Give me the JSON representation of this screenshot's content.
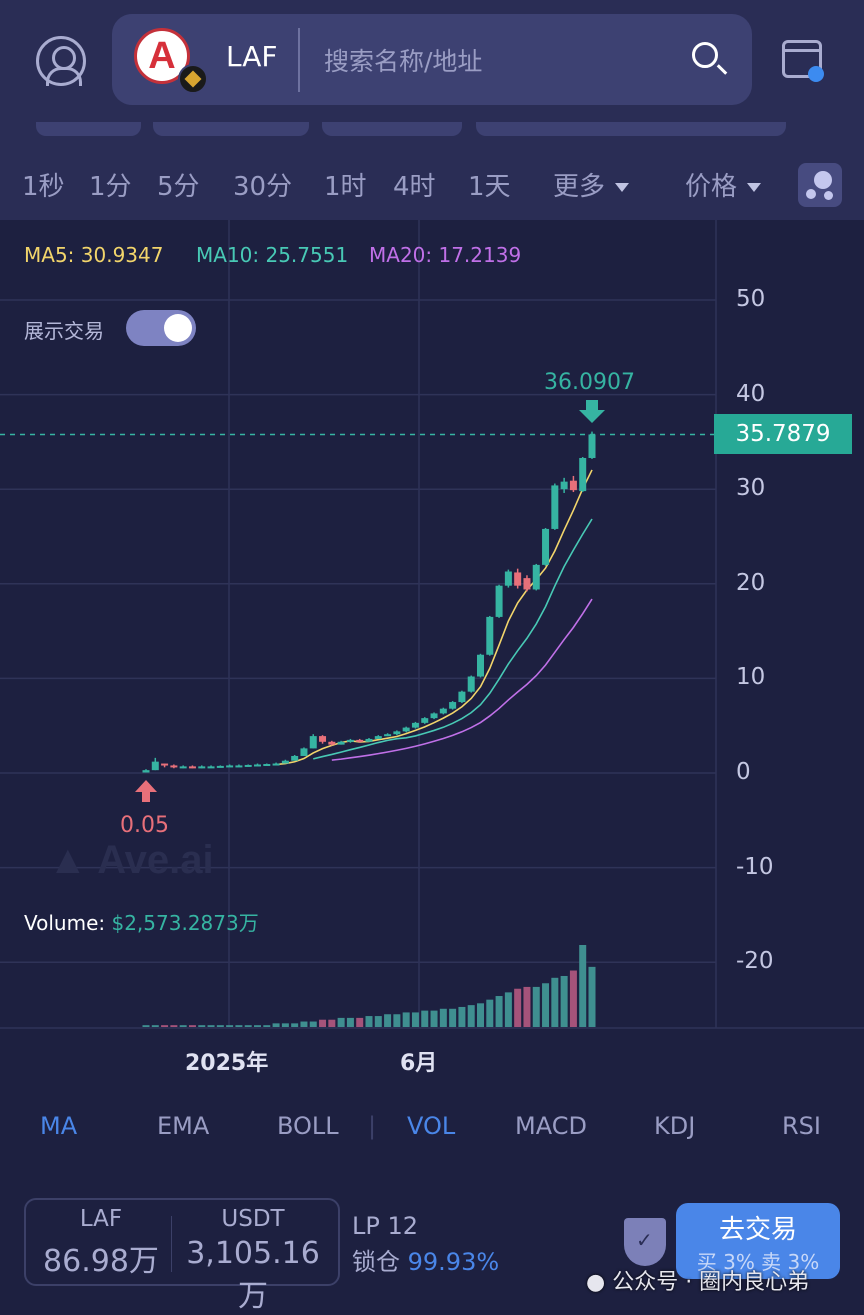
{
  "header": {
    "token_symbol": "LAF",
    "search_placeholder": "搜索名称/地址"
  },
  "timeframes": [
    "1秒",
    "1分",
    "5分",
    "30分",
    "1时",
    "4时",
    "1天"
  ],
  "more_label": "更多",
  "price_label": "价格",
  "ma_legend": {
    "ma5": "MA5: 30.9347",
    "ma10": "MA10: 25.7551",
    "ma20": "MA20: 17.2139"
  },
  "show_trades_label": "展示交易",
  "show_trades_on": true,
  "watermark": "Ave.ai",
  "volume_label": "Volume:",
  "volume_value": "$2,573.2873万",
  "colors": {
    "up": "#36b4a2",
    "down": "#e8707a",
    "ma5": "#f2d56b",
    "ma10": "#48c9b5",
    "ma20": "#c070e8",
    "accent": "#4a86e8"
  },
  "chart_data": {
    "type": "candlestick",
    "y_ticks": [
      "50",
      "40",
      "30",
      "20",
      "10",
      "0",
      "-10",
      "-20"
    ],
    "ylim": [
      -27,
      55
    ],
    "x_labels": [
      "2025年",
      "6月"
    ],
    "current_price": "35.7879",
    "high_label": "36.0907",
    "low_label": "0.05",
    "candles": [
      [
        0.05,
        0.3,
        0.4,
        0.05
      ],
      [
        0.3,
        1.2,
        1.6,
        0.3
      ],
      [
        1.0,
        0.8,
        1.0,
        0.6
      ],
      [
        0.8,
        0.6,
        0.9,
        0.5
      ],
      [
        0.6,
        0.7,
        0.8,
        0.5
      ],
      [
        0.7,
        0.6,
        0.8,
        0.5
      ],
      [
        0.6,
        0.7,
        0.8,
        0.5
      ],
      [
        0.7,
        0.7,
        0.8,
        0.6
      ],
      [
        0.7,
        0.75,
        0.8,
        0.6
      ],
      [
        0.75,
        0.8,
        0.9,
        0.7
      ],
      [
        0.8,
        0.8,
        0.9,
        0.7
      ],
      [
        0.8,
        0.85,
        0.9,
        0.7
      ],
      [
        0.85,
        0.9,
        1.0,
        0.8
      ],
      [
        0.9,
        0.95,
        1.0,
        0.8
      ],
      [
        0.95,
        1.0,
        1.1,
        0.9
      ],
      [
        1.0,
        1.3,
        1.4,
        1.0
      ],
      [
        1.3,
        1.8,
        1.9,
        1.3
      ],
      [
        1.8,
        2.6,
        2.7,
        1.8
      ],
      [
        2.6,
        3.9,
        4.1,
        2.6
      ],
      [
        3.9,
        3.3,
        4.0,
        3.1
      ],
      [
        3.3,
        3.0,
        3.4,
        2.9
      ],
      [
        3.0,
        3.3,
        3.4,
        3.0
      ],
      [
        3.3,
        3.5,
        3.6,
        3.2
      ],
      [
        3.5,
        3.3,
        3.6,
        3.2
      ],
      [
        3.3,
        3.6,
        3.7,
        3.3
      ],
      [
        3.6,
        3.9,
        4.0,
        3.6
      ],
      [
        3.9,
        4.1,
        4.2,
        3.9
      ],
      [
        4.1,
        4.4,
        4.5,
        4.0
      ],
      [
        4.4,
        4.8,
        4.9,
        4.3
      ],
      [
        4.8,
        5.3,
        5.4,
        4.7
      ],
      [
        5.3,
        5.8,
        5.9,
        5.2
      ],
      [
        5.8,
        6.3,
        6.4,
        5.7
      ],
      [
        6.3,
        6.8,
        6.9,
        6.2
      ],
      [
        6.8,
        7.5,
        7.6,
        6.7
      ],
      [
        7.5,
        8.6,
        8.7,
        7.4
      ],
      [
        8.6,
        10.2,
        10.3,
        8.5
      ],
      [
        10.2,
        12.5,
        12.6,
        10.1
      ],
      [
        12.5,
        16.5,
        16.6,
        12.4
      ],
      [
        16.5,
        19.8,
        19.9,
        16.4
      ],
      [
        19.8,
        21.3,
        21.5,
        19.6
      ],
      [
        21.2,
        19.8,
        21.6,
        19.5
      ],
      [
        20.6,
        19.4,
        20.9,
        19.2
      ],
      [
        19.4,
        22.0,
        22.1,
        19.3
      ],
      [
        22.0,
        25.8,
        25.9,
        21.9
      ],
      [
        25.8,
        30.4,
        30.6,
        25.7
      ],
      [
        30.0,
        30.8,
        31.2,
        29.6
      ],
      [
        30.9,
        29.9,
        31.4,
        29.7
      ],
      [
        29.8,
        33.3,
        33.4,
        29.7
      ],
      [
        33.3,
        35.7879,
        36.0907,
        33.2
      ]
    ],
    "volume_relative": [
      1,
      1,
      1,
      1,
      1,
      1,
      1,
      1,
      1,
      1,
      1,
      1,
      1,
      1,
      2,
      2,
      2,
      3,
      3,
      4,
      4,
      5,
      5,
      5,
      6,
      6,
      7,
      7,
      8,
      8,
      9,
      9,
      10,
      10,
      11,
      12,
      13,
      15,
      17,
      19,
      21,
      22,
      22,
      24,
      27,
      28,
      31,
      45,
      33
    ],
    "volume_direction": [
      1,
      1,
      0,
      0,
      1,
      0,
      1,
      1,
      1,
      1,
      1,
      1,
      1,
      1,
      1,
      1,
      1,
      1,
      1,
      0,
      0,
      1,
      1,
      0,
      1,
      1,
      1,
      1,
      1,
      1,
      1,
      1,
      1,
      1,
      1,
      1,
      1,
      1,
      1,
      1,
      0,
      0,
      1,
      1,
      1,
      1,
      0,
      1,
      1
    ]
  },
  "indicators": [
    "MA",
    "EMA",
    "BOLL",
    "VOL",
    "MACD",
    "KDJ",
    "RSI"
  ],
  "indicators_active": [
    "MA",
    "VOL"
  ],
  "footer": {
    "base_symbol": "LAF",
    "base_amount": "86.98万",
    "quote_symbol": "USDT",
    "quote_amount": "3,105.16万",
    "lp": "LP 12",
    "lock_label": "锁仓",
    "lock_value": "99.93%",
    "trade_label": "去交易",
    "tax": "买 3% 卖 3%",
    "wechat": "公众号 · 圈内良心弟"
  }
}
